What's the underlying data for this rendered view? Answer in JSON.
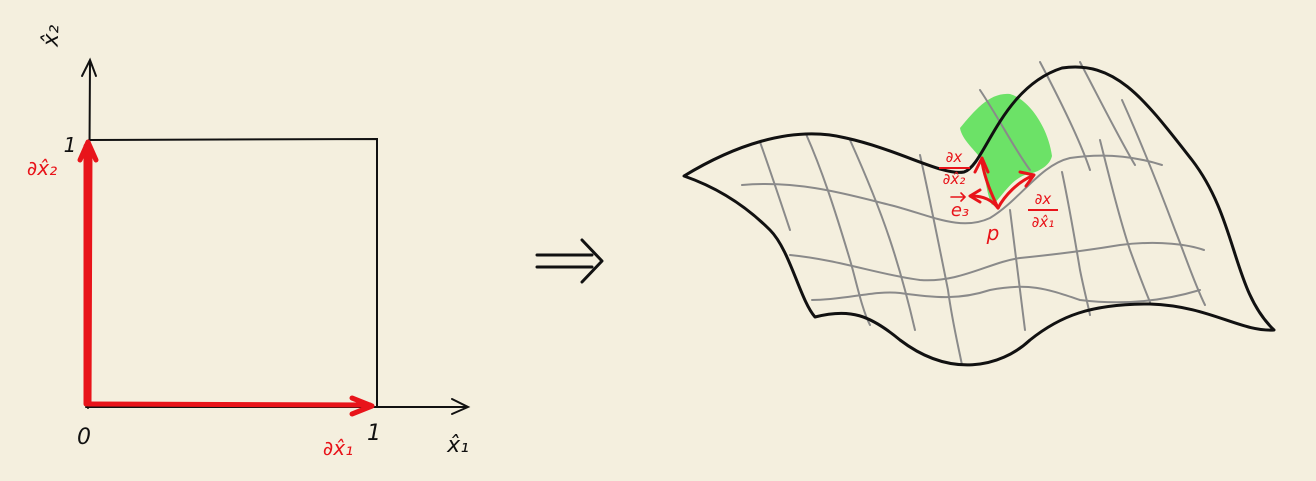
{
  "colors": {
    "background": "#f4efde",
    "ink": "#111111",
    "highlight": "#e8141a",
    "grid": "#8a8a8a",
    "patch": "#5de05a"
  },
  "reference_square": {
    "x2_axis_label": "x̂₂",
    "x1_axis_label": "x̂₁",
    "origin_label": "0",
    "x1_tick_label": "1",
    "x2_tick_label": "1",
    "x1_derivative_label": "∂x̂₁",
    "x2_derivative_label": "∂x̂₂"
  },
  "mapping_arrow": {
    "icon": "implies-arrow-icon",
    "glyph": "⟹"
  },
  "surface": {
    "point_label": "p",
    "tangent_x2_numerator": "∂x",
    "tangent_x2_denominator": "∂x̂₂",
    "tangent_x1_numerator": "∂x",
    "tangent_x1_denominator": "∂x̂₁",
    "normal_label": "e₃"
  }
}
